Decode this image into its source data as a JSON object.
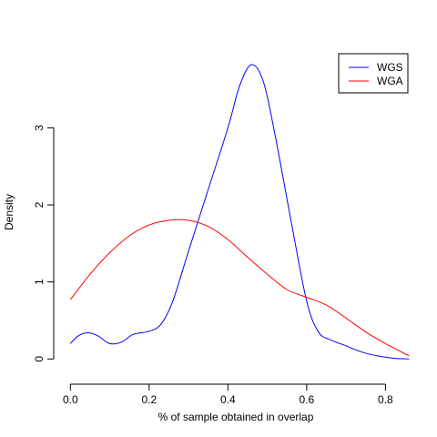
{
  "chart_data": {
    "type": "line",
    "title": "",
    "xlabel": "% of sample obtained in overlap",
    "ylabel": "Density",
    "xlim": [
      -0.04,
      0.88
    ],
    "ylim": [
      -0.15,
      3.95
    ],
    "x_ticks": [
      0.0,
      0.2,
      0.4,
      0.6,
      0.8
    ],
    "x_tick_labels": [
      "0.0",
      "0.2",
      "0.4",
      "0.6",
      "0.8"
    ],
    "y_ticks": [
      0,
      1,
      2,
      3
    ],
    "y_tick_labels": [
      "0",
      "1",
      "2",
      "3"
    ],
    "grid": false,
    "legend_position": "top-right",
    "series": [
      {
        "name": "WGS",
        "color": "#0000ff",
        "x": [
          0.0,
          0.02,
          0.045,
          0.07,
          0.1,
          0.13,
          0.16,
          0.2,
          0.23,
          0.26,
          0.3,
          0.35,
          0.4,
          0.43,
          0.46,
          0.49,
          0.52,
          0.56,
          0.6,
          0.63,
          0.66,
          0.7,
          0.74,
          0.78,
          0.82,
          0.86
        ],
        "y": [
          0.2,
          0.3,
          0.34,
          0.3,
          0.2,
          0.22,
          0.32,
          0.36,
          0.45,
          0.75,
          1.4,
          2.2,
          3.0,
          3.55,
          3.82,
          3.6,
          2.9,
          1.8,
          0.75,
          0.35,
          0.25,
          0.17,
          0.09,
          0.04,
          0.01,
          0.0
        ]
      },
      {
        "name": "WGA",
        "color": "#ff0000",
        "x": [
          0.0,
          0.05,
          0.1,
          0.15,
          0.2,
          0.25,
          0.3,
          0.35,
          0.4,
          0.45,
          0.5,
          0.55,
          0.6,
          0.65,
          0.7,
          0.75,
          0.8,
          0.86
        ],
        "y": [
          0.77,
          1.1,
          1.38,
          1.6,
          1.74,
          1.8,
          1.8,
          1.72,
          1.55,
          1.32,
          1.1,
          0.9,
          0.8,
          0.7,
          0.53,
          0.35,
          0.2,
          0.04
        ]
      }
    ]
  }
}
